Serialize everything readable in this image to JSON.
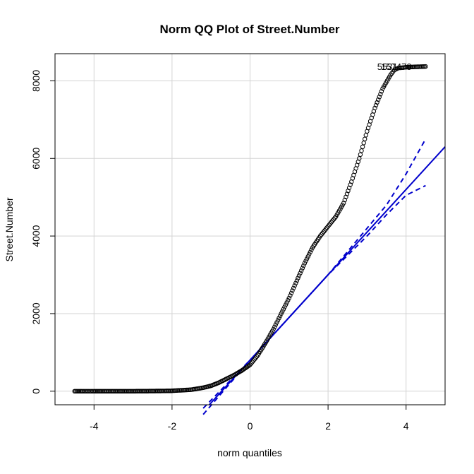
{
  "chart_data": {
    "type": "scatter",
    "title": "Norm QQ Plot of Street.Number",
    "xlabel": "norm quantiles",
    "ylabel": "Street.Number",
    "xlim": [
      -5,
      5
    ],
    "ylim": [
      -350,
      8700
    ],
    "x_ticks": [
      -4,
      -2,
      0,
      2,
      4
    ],
    "y_ticks": [
      0,
      2000,
      4000,
      6000,
      8000
    ],
    "x_tick_labels": [
      "-4",
      "-2",
      "0",
      "2",
      "4"
    ],
    "y_tick_labels": [
      "0",
      "2000",
      "4000",
      "6000",
      "8000"
    ],
    "grid": true,
    "sample_quantiles": {
      "description_points": [
        [
          -4.5,
          0
        ],
        [
          -4.3,
          0
        ],
        [
          -4.2,
          0
        ],
        [
          -4.1,
          0
        ],
        [
          -4.0,
          0
        ],
        [
          -3.8,
          0
        ],
        [
          -3.5,
          0
        ],
        [
          -3.0,
          0
        ],
        [
          -2.5,
          3
        ],
        [
          -2.0,
          10
        ],
        [
          -1.5,
          40
        ],
        [
          -1.2,
          90
        ],
        [
          -1.0,
          140
        ],
        [
          -0.8,
          220
        ],
        [
          -0.6,
          320
        ],
        [
          -0.4,
          420
        ],
        [
          -0.2,
          540
        ],
        [
          0.0,
          680
        ],
        [
          0.2,
          930
        ],
        [
          0.4,
          1250
        ],
        [
          0.6,
          1600
        ],
        [
          0.8,
          2000
        ],
        [
          1.0,
          2400
        ],
        [
          1.2,
          2850
        ],
        [
          1.4,
          3300
        ],
        [
          1.6,
          3700
        ],
        [
          1.8,
          4000
        ],
        [
          2.0,
          4250
        ],
        [
          2.2,
          4500
        ],
        [
          2.4,
          4850
        ],
        [
          2.6,
          5400
        ],
        [
          2.8,
          6000
        ],
        [
          3.0,
          6700
        ],
        [
          3.2,
          7300
        ],
        [
          3.4,
          7800
        ],
        [
          3.6,
          8150
        ],
        [
          3.7,
          8280
        ],
        [
          3.8,
          8330
        ],
        [
          3.9,
          8340
        ],
        [
          4.0,
          8350
        ],
        [
          4.2,
          8360
        ],
        [
          4.5,
          8370
        ]
      ]
    },
    "reference_line": {
      "intercept": 800,
      "slope": 1100,
      "color": "#0000cc"
    },
    "envelope_upper": [
      [
        3.0,
        4200
      ],
      [
        3.5,
        4800
      ],
      [
        4.0,
        5600
      ],
      [
        4.5,
        6500
      ]
    ],
    "envelope_lower": [
      [
        3.0,
        4000
      ],
      [
        3.5,
        4550
      ],
      [
        4.0,
        5050
      ],
      [
        4.5,
        5300
      ]
    ],
    "annotations": [
      {
        "text": "157470",
        "x": 3.75,
        "y": 8370
      },
      {
        "text": "5531",
        "x": 3.52,
        "y": 8370
      }
    ],
    "point_color": "#000000",
    "line_color": "#0000cc"
  }
}
